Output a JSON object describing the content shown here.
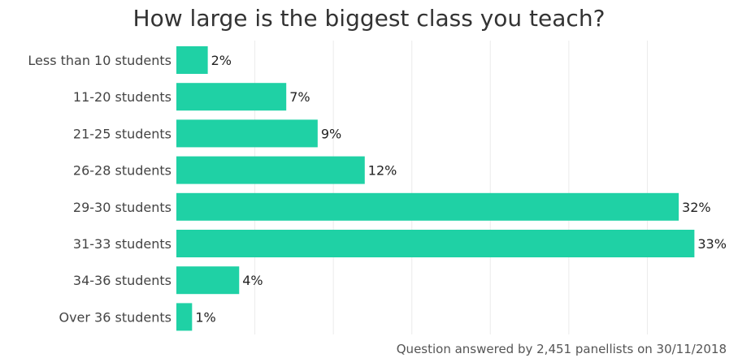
{
  "chart_data": {
    "type": "bar",
    "orientation": "horizontal",
    "title": "How large is the biggest class you teach?",
    "categories": [
      "Less than 10 students",
      "11-20 students",
      "21-25 students",
      "26-28 students",
      "29-30 students",
      "31-33 students",
      "34-36 students",
      "Over 36 students"
    ],
    "values": [
      2,
      7,
      9,
      12,
      32,
      33,
      4,
      1
    ],
    "value_labels": [
      "2%",
      "7%",
      "9%",
      "12%",
      "32%",
      "33%",
      "4%",
      "1%"
    ],
    "unit": "%",
    "xlim": [
      0,
      35
    ],
    "grid": true,
    "bar_color": "#1fd1a5"
  },
  "footnote": "Question answered by 2,451 panellists on 30/11/2018"
}
